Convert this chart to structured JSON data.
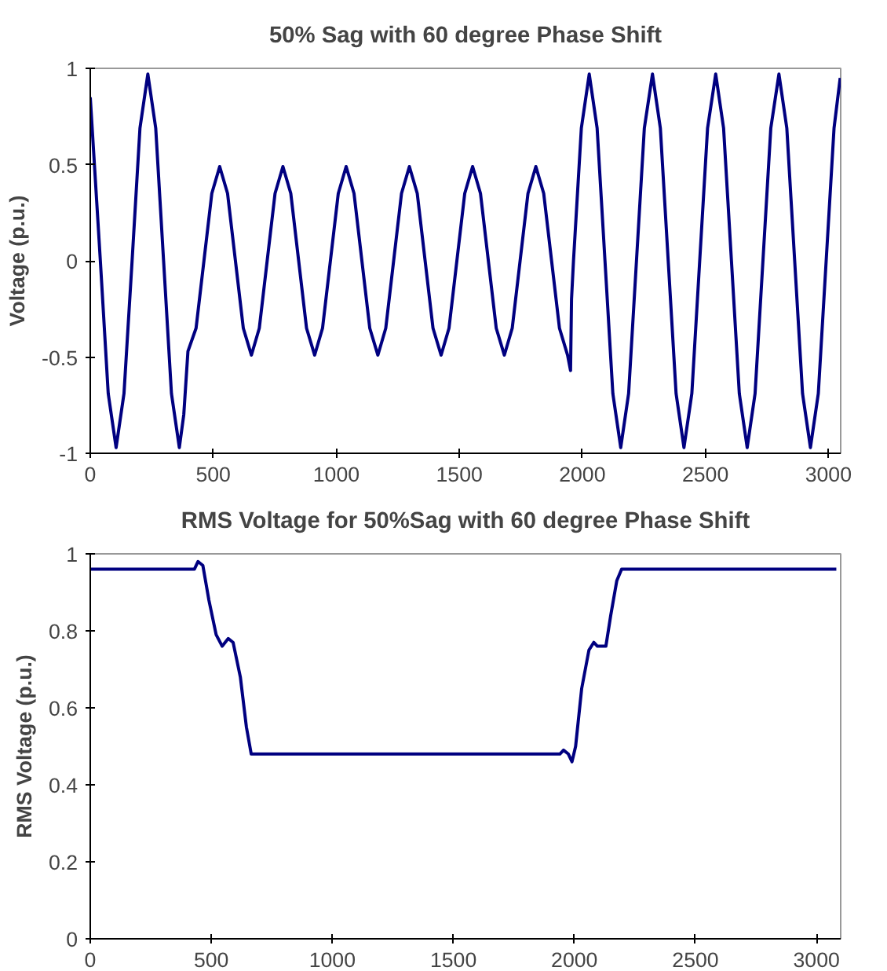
{
  "chart_data": [
    {
      "type": "line",
      "title": "50% Sag with 60 degree Phase Shift",
      "ylabel": "Voltage (p.u.)",
      "xlim": [
        0,
        3050
      ],
      "xticks": [
        0,
        500,
        1000,
        1500,
        2000,
        2500,
        3000
      ],
      "ylim": [
        -1,
        1
      ],
      "yticks": [
        -1,
        -0.5,
        0,
        0.5,
        1
      ],
      "grid": false,
      "series": [
        {
          "color": "#000080",
          "x": [
            0,
            41,
            73,
            105,
            137,
            170,
            202,
            234,
            266,
            298,
            330,
            362,
            380,
            397,
            430,
            462,
            494,
            526,
            558,
            590,
            622,
            655,
            687,
            719,
            751,
            783,
            815,
            847,
            879,
            912,
            944,
            976,
            1008,
            1040,
            1072,
            1104,
            1136,
            1169,
            1201,
            1233,
            1265,
            1297,
            1329,
            1361,
            1393,
            1426,
            1458,
            1490,
            1522,
            1554,
            1586,
            1618,
            1650,
            1683,
            1715,
            1747,
            1779,
            1811,
            1843,
            1875,
            1907,
            1940,
            1952,
            1956,
            1964,
            1996,
            2028,
            2060,
            2092,
            2124,
            2156,
            2188,
            2220,
            2252,
            2285,
            2317,
            2349,
            2381,
            2413,
            2445,
            2477,
            2509,
            2542,
            2574,
            2606,
            2638,
            2670,
            2702,
            2734,
            2766,
            2799,
            2831,
            2863,
            2895,
            2927,
            2959,
            2991,
            3023,
            3048
          ],
          "values": [
            0.85,
            0,
            -0.69,
            -0.97,
            -0.69,
            0,
            0.69,
            0.97,
            0.69,
            0,
            -0.69,
            -0.97,
            -0.8,
            -0.47,
            -0.35,
            0,
            0.35,
            0.49,
            0.35,
            0,
            -0.35,
            -0.49,
            -0.35,
            0,
            0.35,
            0.49,
            0.35,
            0,
            -0.35,
            -0.49,
            -0.35,
            0,
            0.35,
            0.49,
            0.35,
            0,
            -0.35,
            -0.49,
            -0.35,
            0,
            0.35,
            0.49,
            0.35,
            0,
            -0.35,
            -0.49,
            -0.35,
            0,
            0.35,
            0.49,
            0.35,
            0,
            -0.35,
            -0.49,
            -0.35,
            0,
            0.35,
            0.49,
            0.35,
            0,
            -0.35,
            -0.49,
            -0.57,
            -0.2,
            0,
            0.69,
            0.97,
            0.69,
            0,
            -0.69,
            -0.97,
            -0.69,
            0,
            0.69,
            0.97,
            0.69,
            0,
            -0.69,
            -0.97,
            -0.69,
            0,
            0.69,
            0.97,
            0.69,
            0,
            -0.69,
            -0.97,
            -0.69,
            0,
            0.69,
            0.97,
            0.69,
            0,
            -0.69,
            -0.97,
            -0.69,
            0,
            0.69,
            0.95
          ]
        }
      ]
    },
    {
      "type": "line",
      "title": "RMS Voltage for 50%Sag with 60 degree Phase Shift",
      "ylabel": "RMS Voltage (p.u.)",
      "xlim": [
        0,
        3100
      ],
      "xticks": [
        0,
        500,
        1000,
        1500,
        2000,
        2500,
        3000
      ],
      "ylim": [
        0,
        1
      ],
      "yticks": [
        0,
        0.2,
        0.4,
        0.6,
        0.8,
        1
      ],
      "grid": false,
      "series": [
        {
          "color": "#000080",
          "x": [
            0,
            430,
            445,
            465,
            490,
            520,
            545,
            570,
            590,
            620,
            645,
            665,
            1940,
            1955,
            1975,
            1990,
            2005,
            2030,
            2060,
            2080,
            2095,
            2130,
            2150,
            2175,
            2195,
            3082
          ],
          "values": [
            0.96,
            0.96,
            0.98,
            0.97,
            0.88,
            0.79,
            0.76,
            0.78,
            0.77,
            0.68,
            0.55,
            0.48,
            0.48,
            0.49,
            0.48,
            0.46,
            0.5,
            0.65,
            0.75,
            0.77,
            0.76,
            0.76,
            0.84,
            0.93,
            0.96,
            0.96
          ]
        }
      ]
    }
  ]
}
